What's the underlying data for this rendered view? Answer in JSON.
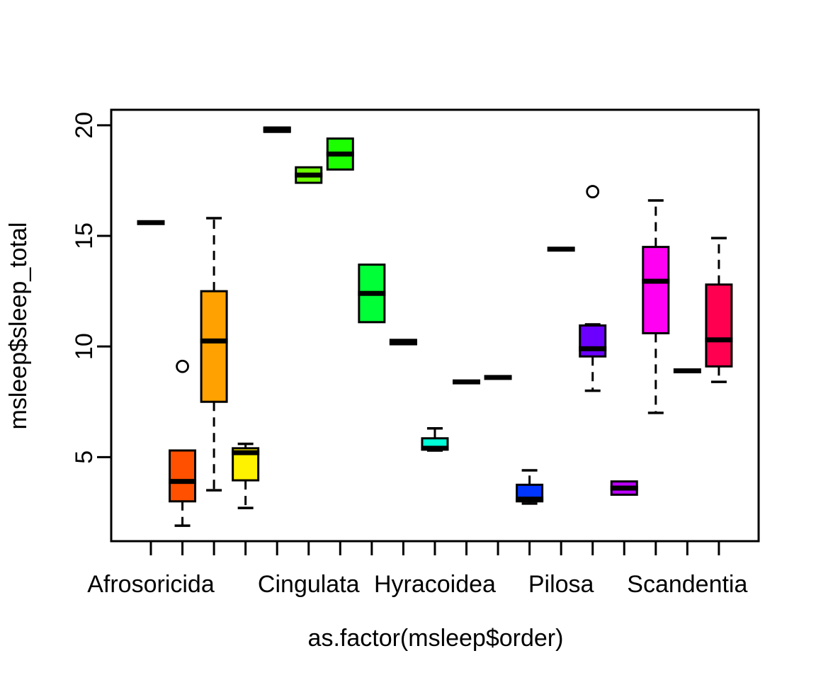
{
  "chart_data": {
    "type": "boxplot",
    "title": "",
    "xlabel": "as.factor(msleep$order)",
    "ylabel": "msleep$sleep_total",
    "ylim": [
      1.2,
      20.7
    ],
    "yticks": [
      5,
      10,
      15,
      20
    ],
    "grid": false,
    "legend": "none",
    "n_categories": 19,
    "box_border_color": "#000000",
    "axis_color": "#000000",
    "background_color": "#FFFFFF",
    "groups": [
      {
        "tick_label": "Afrosoricida",
        "color": "#FF0000",
        "whisker_low": 15.6,
        "q1": 15.6,
        "median": 15.6,
        "q3": 15.6,
        "whisker_high": 15.6,
        "outliers": []
      },
      {
        "tick_label": "",
        "color": "#FF5000",
        "whisker_low": 1.9,
        "q1": 3.0,
        "median": 3.9,
        "q3": 5.3,
        "whisker_high": 5.3,
        "outliers": [
          9.1
        ]
      },
      {
        "tick_label": "",
        "color": "#FFA100",
        "whisker_low": 3.5,
        "q1": 7.5,
        "median": 10.25,
        "q3": 12.5,
        "whisker_high": 15.8,
        "outliers": []
      },
      {
        "tick_label": "",
        "color": "#FFF200",
        "whisker_low": 2.7,
        "q1": 3.95,
        "median": 5.2,
        "q3": 5.4,
        "whisker_high": 5.6,
        "outliers": []
      },
      {
        "tick_label": "",
        "color": "#BCFF00",
        "whisker_low": 19.7,
        "q1": 19.7,
        "median": 19.8,
        "q3": 19.9,
        "whisker_high": 19.9,
        "outliers": []
      },
      {
        "tick_label": "Cingulata",
        "color": "#6BFF00",
        "whisker_low": 17.4,
        "q1": 17.4,
        "median": 17.75,
        "q3": 18.1,
        "whisker_high": 18.1,
        "outliers": []
      },
      {
        "tick_label": "",
        "color": "#1BFF00",
        "whisker_low": 18.0,
        "q1": 18.0,
        "median": 18.7,
        "q3": 19.4,
        "whisker_high": 19.4,
        "outliers": []
      },
      {
        "tick_label": "",
        "color": "#00FF36",
        "whisker_low": 11.1,
        "q1": 11.1,
        "median": 12.4,
        "q3": 13.7,
        "whisker_high": 13.7,
        "outliers": []
      },
      {
        "tick_label": "",
        "color": "#00FF86",
        "whisker_low": 10.1,
        "q1": 10.1,
        "median": 10.2,
        "q3": 10.3,
        "whisker_high": 10.3,
        "outliers": []
      },
      {
        "tick_label": "Hyracoidea",
        "color": "#00FFD7",
        "whisker_low": 5.3,
        "q1": 5.35,
        "median": 5.4,
        "q3": 5.85,
        "whisker_high": 6.3,
        "outliers": []
      },
      {
        "tick_label": "",
        "color": "#00D7FF",
        "whisker_low": 8.4,
        "q1": 8.4,
        "median": 8.4,
        "q3": 8.4,
        "whisker_high": 8.4,
        "outliers": []
      },
      {
        "tick_label": "",
        "color": "#0086FF",
        "whisker_low": 8.6,
        "q1": 8.6,
        "median": 8.6,
        "q3": 8.6,
        "whisker_high": 8.6,
        "outliers": []
      },
      {
        "tick_label": "",
        "color": "#0036FF",
        "whisker_low": 2.9,
        "q1": 3.0,
        "median": 3.1,
        "q3": 3.75,
        "whisker_high": 4.4,
        "outliers": []
      },
      {
        "tick_label": "Pilosa",
        "color": "#1B00FF",
        "whisker_low": 14.4,
        "q1": 14.4,
        "median": 14.4,
        "q3": 14.4,
        "whisker_high": 14.4,
        "outliers": []
      },
      {
        "tick_label": "",
        "color": "#6B00FF",
        "whisker_low": 8.0,
        "q1": 9.55,
        "median": 9.9,
        "q3": 10.95,
        "whisker_high": 11.0,
        "outliers": [
          17.0
        ]
      },
      {
        "tick_label": "",
        "color": "#BC00FF",
        "whisker_low": 3.3,
        "q1": 3.3,
        "median": 3.6,
        "q3": 3.9,
        "whisker_high": 3.9,
        "outliers": []
      },
      {
        "tick_label": "",
        "color": "#FF00F2",
        "whisker_low": 7.0,
        "q1": 10.6,
        "median": 12.95,
        "q3": 14.5,
        "whisker_high": 16.6,
        "outliers": []
      },
      {
        "tick_label": "Scandentia",
        "color": "#FF00A1",
        "whisker_low": 8.9,
        "q1": 8.9,
        "median": 8.9,
        "q3": 8.9,
        "whisker_high": 8.9,
        "outliers": []
      },
      {
        "tick_label": "",
        "color": "#FF0050",
        "whisker_low": 8.4,
        "q1": 9.1,
        "median": 10.3,
        "q3": 12.8,
        "whisker_high": 14.9,
        "outliers": []
      }
    ]
  }
}
